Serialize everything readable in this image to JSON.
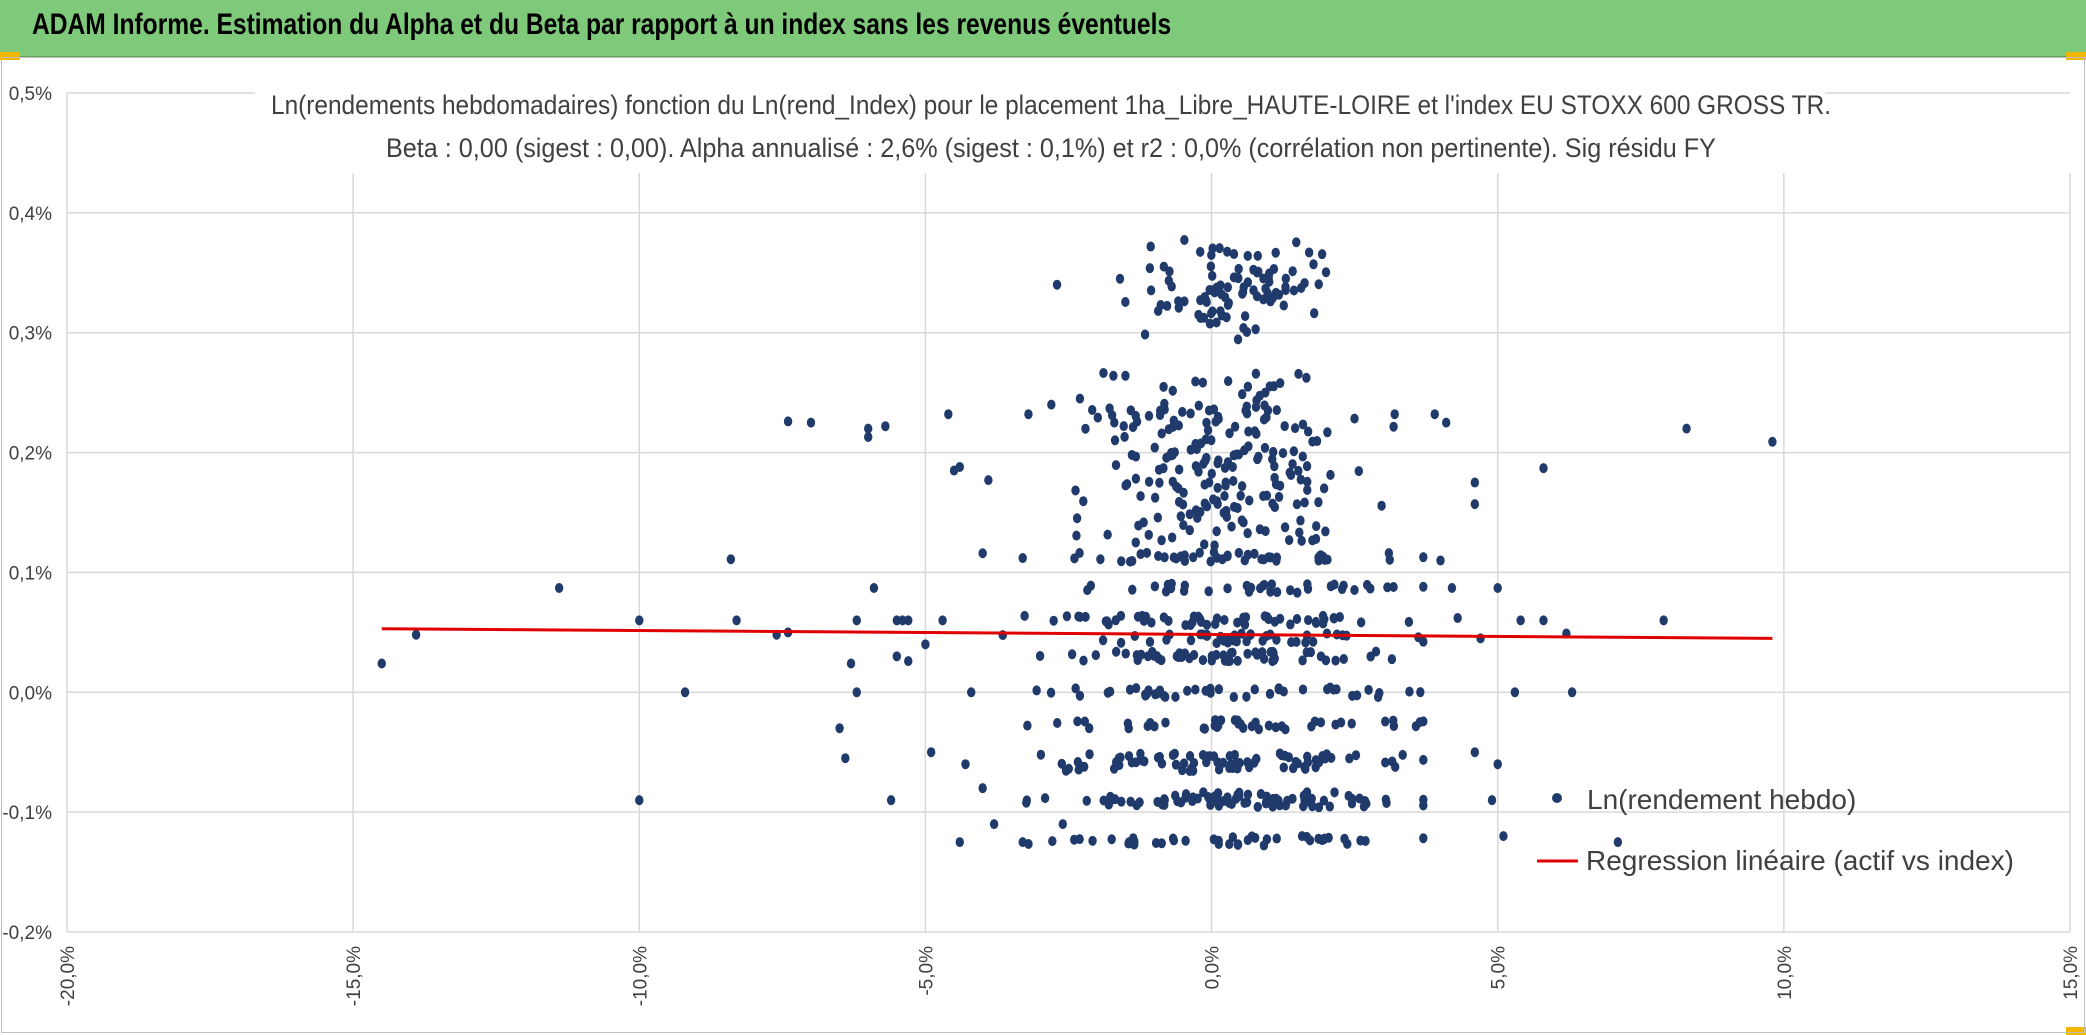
{
  "header": {
    "title": "ADAM Informe. Estimation du Alpha et du Beta par rapport à un index sans les revenus éventuels",
    "background": "#7fc97a",
    "corner_color": "#f2b800"
  },
  "chart_data": {
    "type": "scatter",
    "title_line1": "Ln(rendements hebdomadaires) fonction du Ln(rend_Index) pour le placement 1ha_Libre_HAUTE-LOIRE et l'index EU STOXX 600 GROSS TR.",
    "title_line2": "Beta : 0,00 (sigest : 0,00). Alpha annualisé : 2,6% (sigest : 0,1%) et r2 : 0,0% (corrélation non pertinente). Sig résidu FY",
    "xlim": [
      -20,
      15
    ],
    "ylim": [
      -0.2,
      0.5
    ],
    "x_ticks": [
      -20,
      -15,
      -10,
      -5,
      0,
      5,
      10,
      15
    ],
    "x_tick_labels": [
      "-20,0%",
      "-15,0%",
      "-10,0%",
      "-5,0%",
      "0,0%",
      "5,0%",
      "10,0%",
      "15,0%"
    ],
    "y_ticks": [
      -0.2,
      -0.1,
      0.0,
      0.1,
      0.2,
      0.3,
      0.4,
      0.5
    ],
    "y_tick_labels": [
      "-0,2%",
      "-0,1%",
      "0,0%",
      "0,1%",
      "0,2%",
      "0,3%",
      "0,4%",
      "0,5%"
    ],
    "grid": true,
    "legend_position": "bottom-right",
    "series": [
      {
        "name": "Ln(rendement hebdo)",
        "kind": "points",
        "color": "#1f3a6b",
        "points": [
          [
            -14.5,
            0.024
          ],
          [
            -13.9,
            0.048
          ],
          [
            -11.4,
            0.087
          ],
          [
            -10.0,
            0.06
          ],
          [
            -10.0,
            -0.09
          ],
          [
            -9.2,
            0.0
          ],
          [
            -8.4,
            0.111
          ],
          [
            -8.3,
            0.06
          ],
          [
            -7.6,
            0.048
          ],
          [
            -7.4,
            0.226
          ],
          [
            -7.4,
            0.05
          ],
          [
            -7.0,
            0.225
          ],
          [
            -6.0,
            0.22
          ],
          [
            -6.0,
            0.213
          ],
          [
            -5.9,
            0.087
          ],
          [
            -5.7,
            0.222
          ],
          [
            -6.5,
            -0.03
          ],
          [
            -6.4,
            -0.055
          ],
          [
            -6.3,
            0.024
          ],
          [
            -6.2,
            0.0
          ],
          [
            -6.2,
            0.06
          ],
          [
            -5.5,
            0.06
          ],
          [
            -5.4,
            0.06
          ],
          [
            -5.3,
            0.06
          ],
          [
            -5.5,
            0.03
          ],
          [
            -5.6,
            -0.09
          ],
          [
            -5.3,
            0.026
          ],
          [
            -5.0,
            0.04
          ],
          [
            -4.7,
            0.06
          ],
          [
            -4.9,
            -0.05
          ],
          [
            -4.4,
            -0.125
          ],
          [
            -4.3,
            -0.06
          ],
          [
            -4.2,
            0.0
          ],
          [
            -4.6,
            0.232
          ],
          [
            -4.5,
            0.185
          ],
          [
            -4.4,
            0.188
          ],
          [
            -4.0,
            0.116
          ],
          [
            -3.9,
            0.177
          ],
          [
            -4.0,
            -0.08
          ],
          [
            -3.8,
            -0.11
          ],
          [
            -3.3,
            -0.125
          ],
          [
            -3.3,
            0.112
          ],
          [
            -3.2,
            0.232
          ],
          [
            -2.8,
            0.24
          ],
          [
            -2.7,
            0.34
          ],
          [
            -2.3,
            0.245
          ],
          [
            -1.6,
            0.345
          ],
          [
            -2.4,
            -0.123
          ],
          [
            -1.7,
            0.225
          ],
          [
            -2.6,
            -0.11
          ],
          [
            3.2,
            0.232
          ],
          [
            3.9,
            0.232
          ],
          [
            4.1,
            0.225
          ],
          [
            4.6,
            0.175
          ],
          [
            4.6,
            0.157
          ],
          [
            4.0,
            0.11
          ],
          [
            4.2,
            0.087
          ],
          [
            4.7,
            0.045
          ],
          [
            4.9,
            -0.09
          ],
          [
            5.1,
            -0.12
          ],
          [
            5.3,
            0.0
          ],
          [
            5.4,
            0.06
          ],
          [
            5.8,
            0.06
          ],
          [
            5.8,
            0.187
          ],
          [
            6.2,
            0.049
          ],
          [
            6.3,
            0.0
          ],
          [
            7.1,
            -0.125
          ],
          [
            7.9,
            0.06
          ],
          [
            8.3,
            0.22
          ],
          [
            9.8,
            0.209
          ],
          [
            5.0,
            0.087
          ],
          [
            5.0,
            -0.06
          ],
          [
            4.6,
            -0.05
          ],
          [
            4.3,
            0.062
          ]
        ],
        "band_levels": [
          0.0,
          0.03,
          0.045,
          0.06,
          0.087,
          0.113,
          -0.027,
          -0.055,
          -0.062,
          -0.087,
          -0.092,
          -0.124,
          0.15,
          0.18,
          0.21,
          0.24,
          0.32,
          0.35
        ],
        "band_center": 0.0,
        "total_points_approx": 900
      },
      {
        "name": "Regression linéaire (actif vs index)",
        "kind": "line",
        "color": "#e00000",
        "x": [
          -14.5,
          9.8
        ],
        "y": [
          0.053,
          0.045
        ]
      }
    ]
  }
}
